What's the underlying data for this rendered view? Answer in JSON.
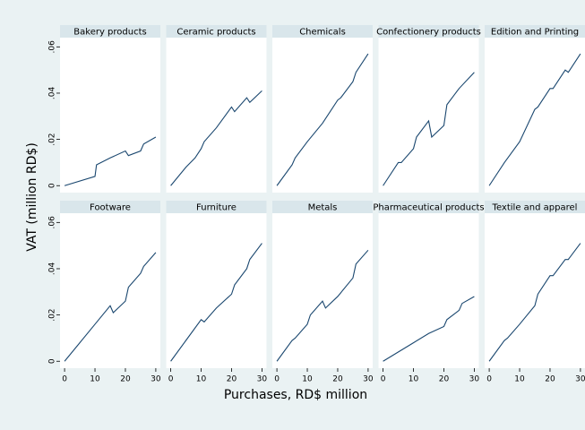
{
  "axis_labels": {
    "y": "VAT (million RD$)",
    "x": "Purchases, RD$ million"
  },
  "chart_data": [
    {
      "type": "line",
      "title": "Bakery products",
      "color": "#1a476f",
      "xlim": [
        -1.5,
        31.5
      ],
      "ylim": [
        -0.003,
        0.064
      ],
      "yticks": [
        0,
        {
          "value": 0.02,
          "label": ".02"
        },
        {
          "value": 0.04,
          "label": ".04"
        },
        {
          "value": 0.06,
          "label": ".06"
        }
      ],
      "x": [
        0,
        10,
        10.5,
        15,
        20,
        21,
        25,
        26,
        30
      ],
      "values": [
        0,
        0.004,
        0.009,
        0.012,
        0.015,
        0.013,
        0.015,
        0.018,
        0.021
      ]
    },
    {
      "type": "line",
      "title": "Ceramic products",
      "color": "#1a476f",
      "xlim": [
        -1.5,
        31.5
      ],
      "ylim": [
        -0.003,
        0.064
      ],
      "x": [
        0,
        5,
        8,
        10,
        11,
        15,
        20,
        21,
        25,
        26,
        30
      ],
      "values": [
        0,
        0.008,
        0.012,
        0.016,
        0.019,
        0.025,
        0.034,
        0.032,
        0.038,
        0.036,
        0.041
      ]
    },
    {
      "type": "line",
      "title": "Chemicals",
      "color": "#1a476f",
      "xlim": [
        -1.5,
        31.5
      ],
      "ylim": [
        -0.003,
        0.064
      ],
      "x": [
        0,
        5,
        6,
        10,
        15,
        20,
        21,
        25,
        26,
        30
      ],
      "values": [
        0,
        0.009,
        0.012,
        0.019,
        0.027,
        0.037,
        0.038,
        0.045,
        0.049,
        0.057
      ]
    },
    {
      "type": "line",
      "title": "Confectionery products",
      "color": "#1a476f",
      "xlim": [
        -1.5,
        31.5
      ],
      "ylim": [
        -0.003,
        0.064
      ],
      "x": [
        0,
        5,
        6,
        10,
        11,
        15,
        16,
        20,
        21,
        25,
        30
      ],
      "values": [
        0,
        0.01,
        0.01,
        0.016,
        0.021,
        0.028,
        0.021,
        0.026,
        0.035,
        0.042,
        0.049
      ]
    },
    {
      "type": "line",
      "title": "Edition and Printing",
      "color": "#1a476f",
      "xlim": [
        -1.5,
        31.5
      ],
      "ylim": [
        -0.003,
        0.064
      ],
      "x": [
        0,
        5,
        10,
        15,
        16,
        20,
        21,
        25,
        26,
        30
      ],
      "values": [
        0,
        0.01,
        0.019,
        0.033,
        0.034,
        0.042,
        0.042,
        0.05,
        0.049,
        0.057
      ]
    },
    {
      "type": "line",
      "title": "Footware",
      "color": "#1a476f",
      "xlim": [
        -1.5,
        31.5
      ],
      "ylim": [
        -0.003,
        0.064
      ],
      "yticks": [
        0,
        {
          "value": 0.02,
          "label": ".02"
        },
        {
          "value": 0.04,
          "label": ".04"
        },
        {
          "value": 0.06,
          "label": ".06"
        }
      ],
      "xticks": [
        0,
        10,
        20,
        30
      ],
      "x": [
        0,
        5,
        10,
        15,
        16,
        20,
        21,
        25,
        26,
        30
      ],
      "values": [
        0,
        0.008,
        0.016,
        0.024,
        0.021,
        0.026,
        0.032,
        0.038,
        0.041,
        0.047
      ]
    },
    {
      "type": "line",
      "title": "Furniture",
      "color": "#1a476f",
      "xlim": [
        -1.5,
        31.5
      ],
      "ylim": [
        -0.003,
        0.064
      ],
      "xticks": [
        0,
        10,
        20,
        30
      ],
      "x": [
        0,
        5,
        10,
        11,
        15,
        20,
        21,
        25,
        26,
        30
      ],
      "values": [
        0,
        0.009,
        0.018,
        0.017,
        0.023,
        0.029,
        0.033,
        0.04,
        0.044,
        0.051
      ]
    },
    {
      "type": "line",
      "title": "Metals",
      "color": "#1a476f",
      "xlim": [
        -1.5,
        31.5
      ],
      "ylim": [
        -0.003,
        0.064
      ],
      "xticks": [
        0,
        10,
        20,
        30
      ],
      "x": [
        0,
        5,
        6,
        10,
        11,
        15,
        16,
        20,
        25,
        26,
        30
      ],
      "values": [
        0,
        0.009,
        0.01,
        0.016,
        0.02,
        0.026,
        0.023,
        0.028,
        0.036,
        0.042,
        0.048
      ]
    },
    {
      "type": "line",
      "title": "Pharmaceutical products",
      "color": "#1a476f",
      "xlim": [
        -1.5,
        31.5
      ],
      "ylim": [
        -0.003,
        0.064
      ],
      "xticks": [
        0,
        10,
        20,
        30
      ],
      "x": [
        0,
        10,
        15,
        20,
        21,
        25,
        26,
        30
      ],
      "values": [
        0,
        0.008,
        0.012,
        0.015,
        0.018,
        0.022,
        0.025,
        0.028
      ]
    },
    {
      "type": "line",
      "title": "Textile and apparel",
      "color": "#1a476f",
      "xlim": [
        -1.5,
        31.5
      ],
      "ylim": [
        -0.003,
        0.064
      ],
      "xticks": [
        0,
        10,
        20,
        30
      ],
      "x": [
        0,
        5,
        6,
        10,
        15,
        16,
        20,
        21,
        25,
        26,
        30
      ],
      "values": [
        0,
        0.009,
        0.01,
        0.016,
        0.024,
        0.029,
        0.037,
        0.037,
        0.044,
        0.044,
        0.051
      ]
    }
  ]
}
